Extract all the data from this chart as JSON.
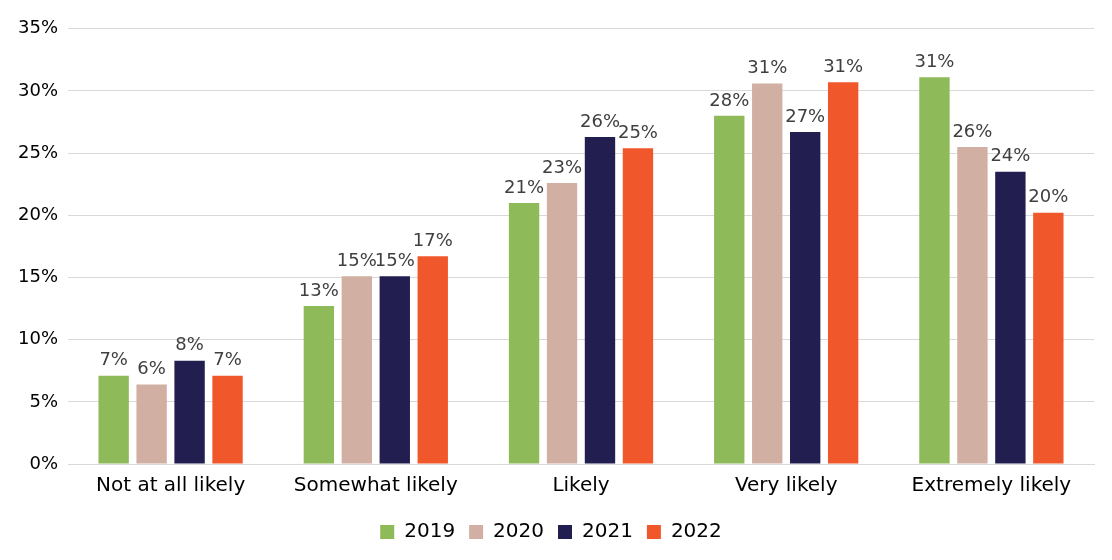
{
  "chart_data": {
    "type": "bar",
    "categories": [
      "Not at all likely",
      "Somewhat likely",
      "Likely",
      "Very likely",
      "Extremely likely"
    ],
    "series": [
      {
        "name": "2019",
        "color": "#8fba5a",
        "values": [
          7.1,
          12.7,
          21.0,
          28.0,
          31.1
        ],
        "value_labels": [
          "7%",
          "13%",
          "21%",
          "28%",
          "31%"
        ]
      },
      {
        "name": "2020",
        "color": "#d1b0a3",
        "values": [
          6.4,
          15.1,
          22.6,
          30.6,
          25.5
        ],
        "value_labels": [
          "6%",
          "15%",
          "23%",
          "31%",
          "26%"
        ]
      },
      {
        "name": "2021",
        "color": "#221e4f",
        "values": [
          8.3,
          15.1,
          26.3,
          26.7,
          23.5
        ],
        "value_labels": [
          "8%",
          "15%",
          "26%",
          "27%",
          "24%"
        ]
      },
      {
        "name": "2022",
        "color": "#f0572a",
        "values": [
          7.1,
          16.7,
          25.4,
          30.7,
          20.2
        ],
        "value_labels": [
          "7%",
          "17%",
          "25%",
          "31%",
          "20%"
        ]
      }
    ],
    "ylim": [
      0,
      35
    ],
    "yticks": [
      {
        "value": 0,
        "label": "0%"
      },
      {
        "value": 5,
        "label": "5%"
      },
      {
        "value": 10,
        "label": "10%"
      },
      {
        "value": 15,
        "label": "15%"
      },
      {
        "value": 20,
        "label": "20%"
      },
      {
        "value": 25,
        "label": "25%"
      },
      {
        "value": 30,
        "label": "30%"
      },
      {
        "value": 35,
        "label": "35%"
      }
    ],
    "grid": "y",
    "legend": "bottom"
  }
}
